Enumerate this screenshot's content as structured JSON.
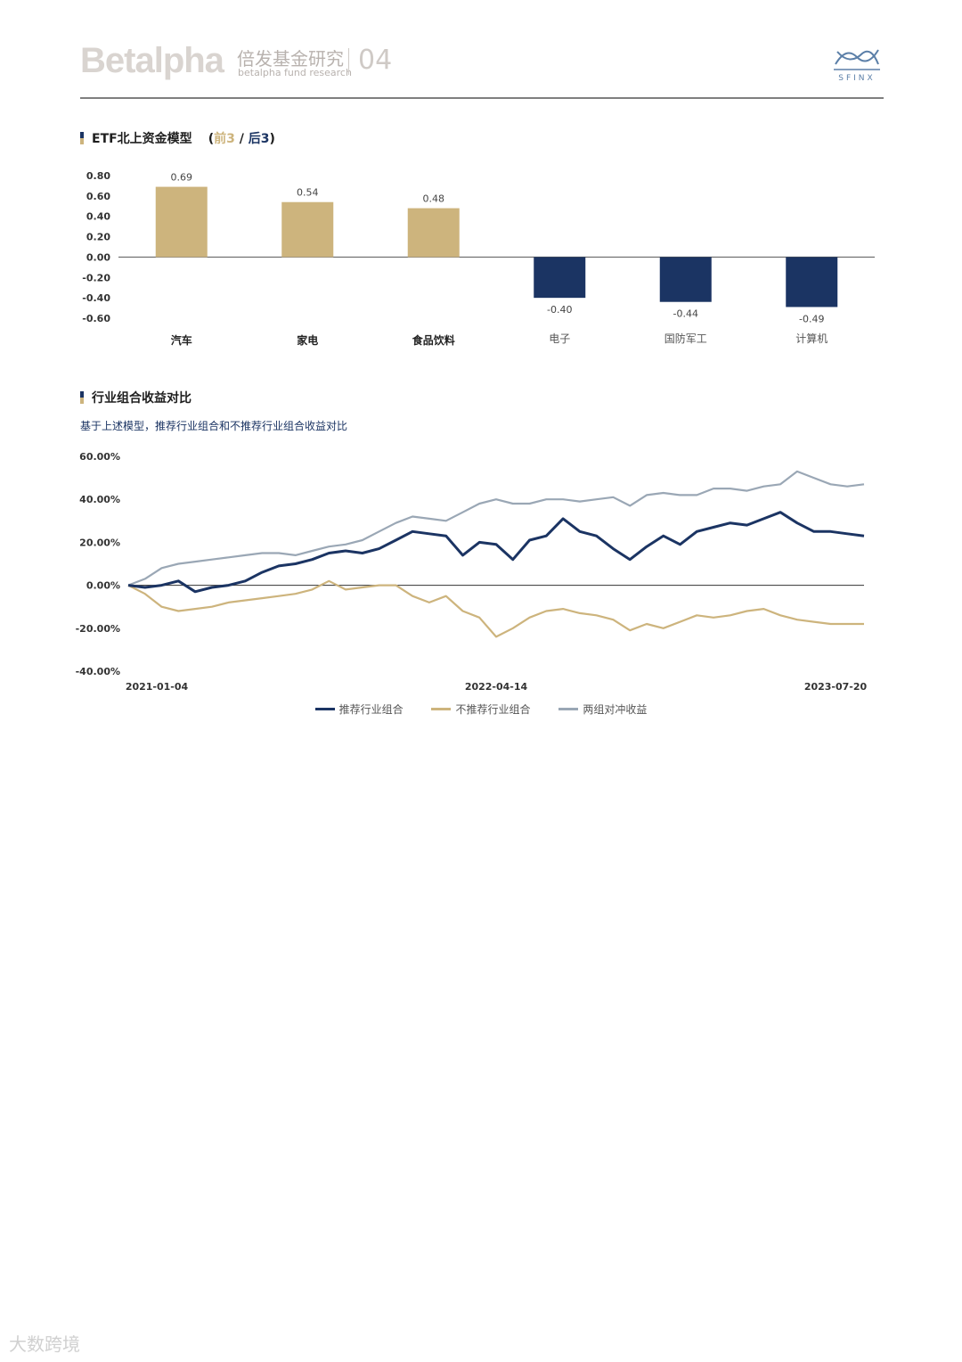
{
  "header": {
    "logo_text": "Betalpha",
    "brand_cn": "倍发基金研究",
    "brand_en": "betalpha fund research",
    "page_number": "04",
    "partner_logo": "SFINX"
  },
  "section1": {
    "title": "ETF北上资金模型",
    "tag_open": "(",
    "tag_top": "前3",
    "tag_sep": " / ",
    "tag_bottom": "后3",
    "tag_close": ")"
  },
  "section2": {
    "title": "行业组合收益对比",
    "subtitle": "基于上述模型，推荐行业组合和不推荐行业组合收益对比"
  },
  "watermark": "大数跨境",
  "chart_data": [
    {
      "type": "bar",
      "title": "ETF北上资金模型",
      "categories": [
        "汽车",
        "家电",
        "食品饮料",
        "电子",
        "国防军工",
        "计算机"
      ],
      "values": [
        0.69,
        0.54,
        0.48,
        -0.4,
        -0.44,
        -0.49
      ],
      "value_labels": [
        "0.69",
        "0.54",
        "0.48",
        "-0.40",
        "-0.44",
        "-0.49"
      ],
      "group": [
        "top",
        "top",
        "top",
        "bottom",
        "bottom",
        "bottom"
      ],
      "ylim": [
        -0.6,
        0.8
      ],
      "yticks": [
        "0.80",
        "0.60",
        "0.40",
        "0.20",
        "0.00",
        "-0.20",
        "-0.40",
        "-0.60"
      ],
      "colors": {
        "top": "#cdb47d",
        "bottom": "#1b3463"
      }
    },
    {
      "type": "line",
      "title": "行业组合收益对比",
      "xlabels": [
        "2021-01-04",
        "2022-04-14",
        "2023-07-20"
      ],
      "ylim": [
        -40,
        60
      ],
      "yticks": [
        "60.00%",
        "40.00%",
        "20.00%",
        "0.00%",
        "-20.00%",
        "-40.00%"
      ],
      "series": [
        {
          "name": "推荐行业组合",
          "color": "#1b3463",
          "values": [
            0,
            -1,
            0,
            2,
            -3,
            -1,
            0,
            2,
            6,
            9,
            10,
            12,
            15,
            16,
            15,
            17,
            21,
            25,
            24,
            23,
            14,
            20,
            19,
            12,
            21,
            23,
            31,
            25,
            23,
            17,
            12,
            18,
            23,
            19,
            25,
            27,
            29,
            28,
            31,
            34,
            29,
            25,
            25,
            24,
            23
          ]
        },
        {
          "name": "不推荐行业组合",
          "color": "#cdb47d",
          "values": [
            0,
            -4,
            -10,
            -12,
            -11,
            -10,
            -8,
            -7,
            -6,
            -5,
            -4,
            -2,
            2,
            -2,
            -1,
            0,
            0,
            -5,
            -8,
            -5,
            -12,
            -15,
            -24,
            -20,
            -15,
            -12,
            -11,
            -13,
            -14,
            -16,
            -21,
            -18,
            -20,
            -17,
            -14,
            -15,
            -14,
            -12,
            -11,
            -14,
            -16,
            -17,
            -18,
            -18,
            -18
          ]
        },
        {
          "name": "两组对冲收益",
          "color": "#9aa7b5",
          "values": [
            0,
            3,
            8,
            10,
            11,
            12,
            13,
            14,
            15,
            15,
            14,
            16,
            18,
            19,
            21,
            25,
            29,
            32,
            31,
            30,
            34,
            38,
            40,
            38,
            38,
            40,
            40,
            39,
            40,
            41,
            37,
            42,
            43,
            42,
            42,
            45,
            45,
            44,
            46,
            47,
            53,
            50,
            47,
            46,
            47
          ]
        }
      ]
    }
  ]
}
